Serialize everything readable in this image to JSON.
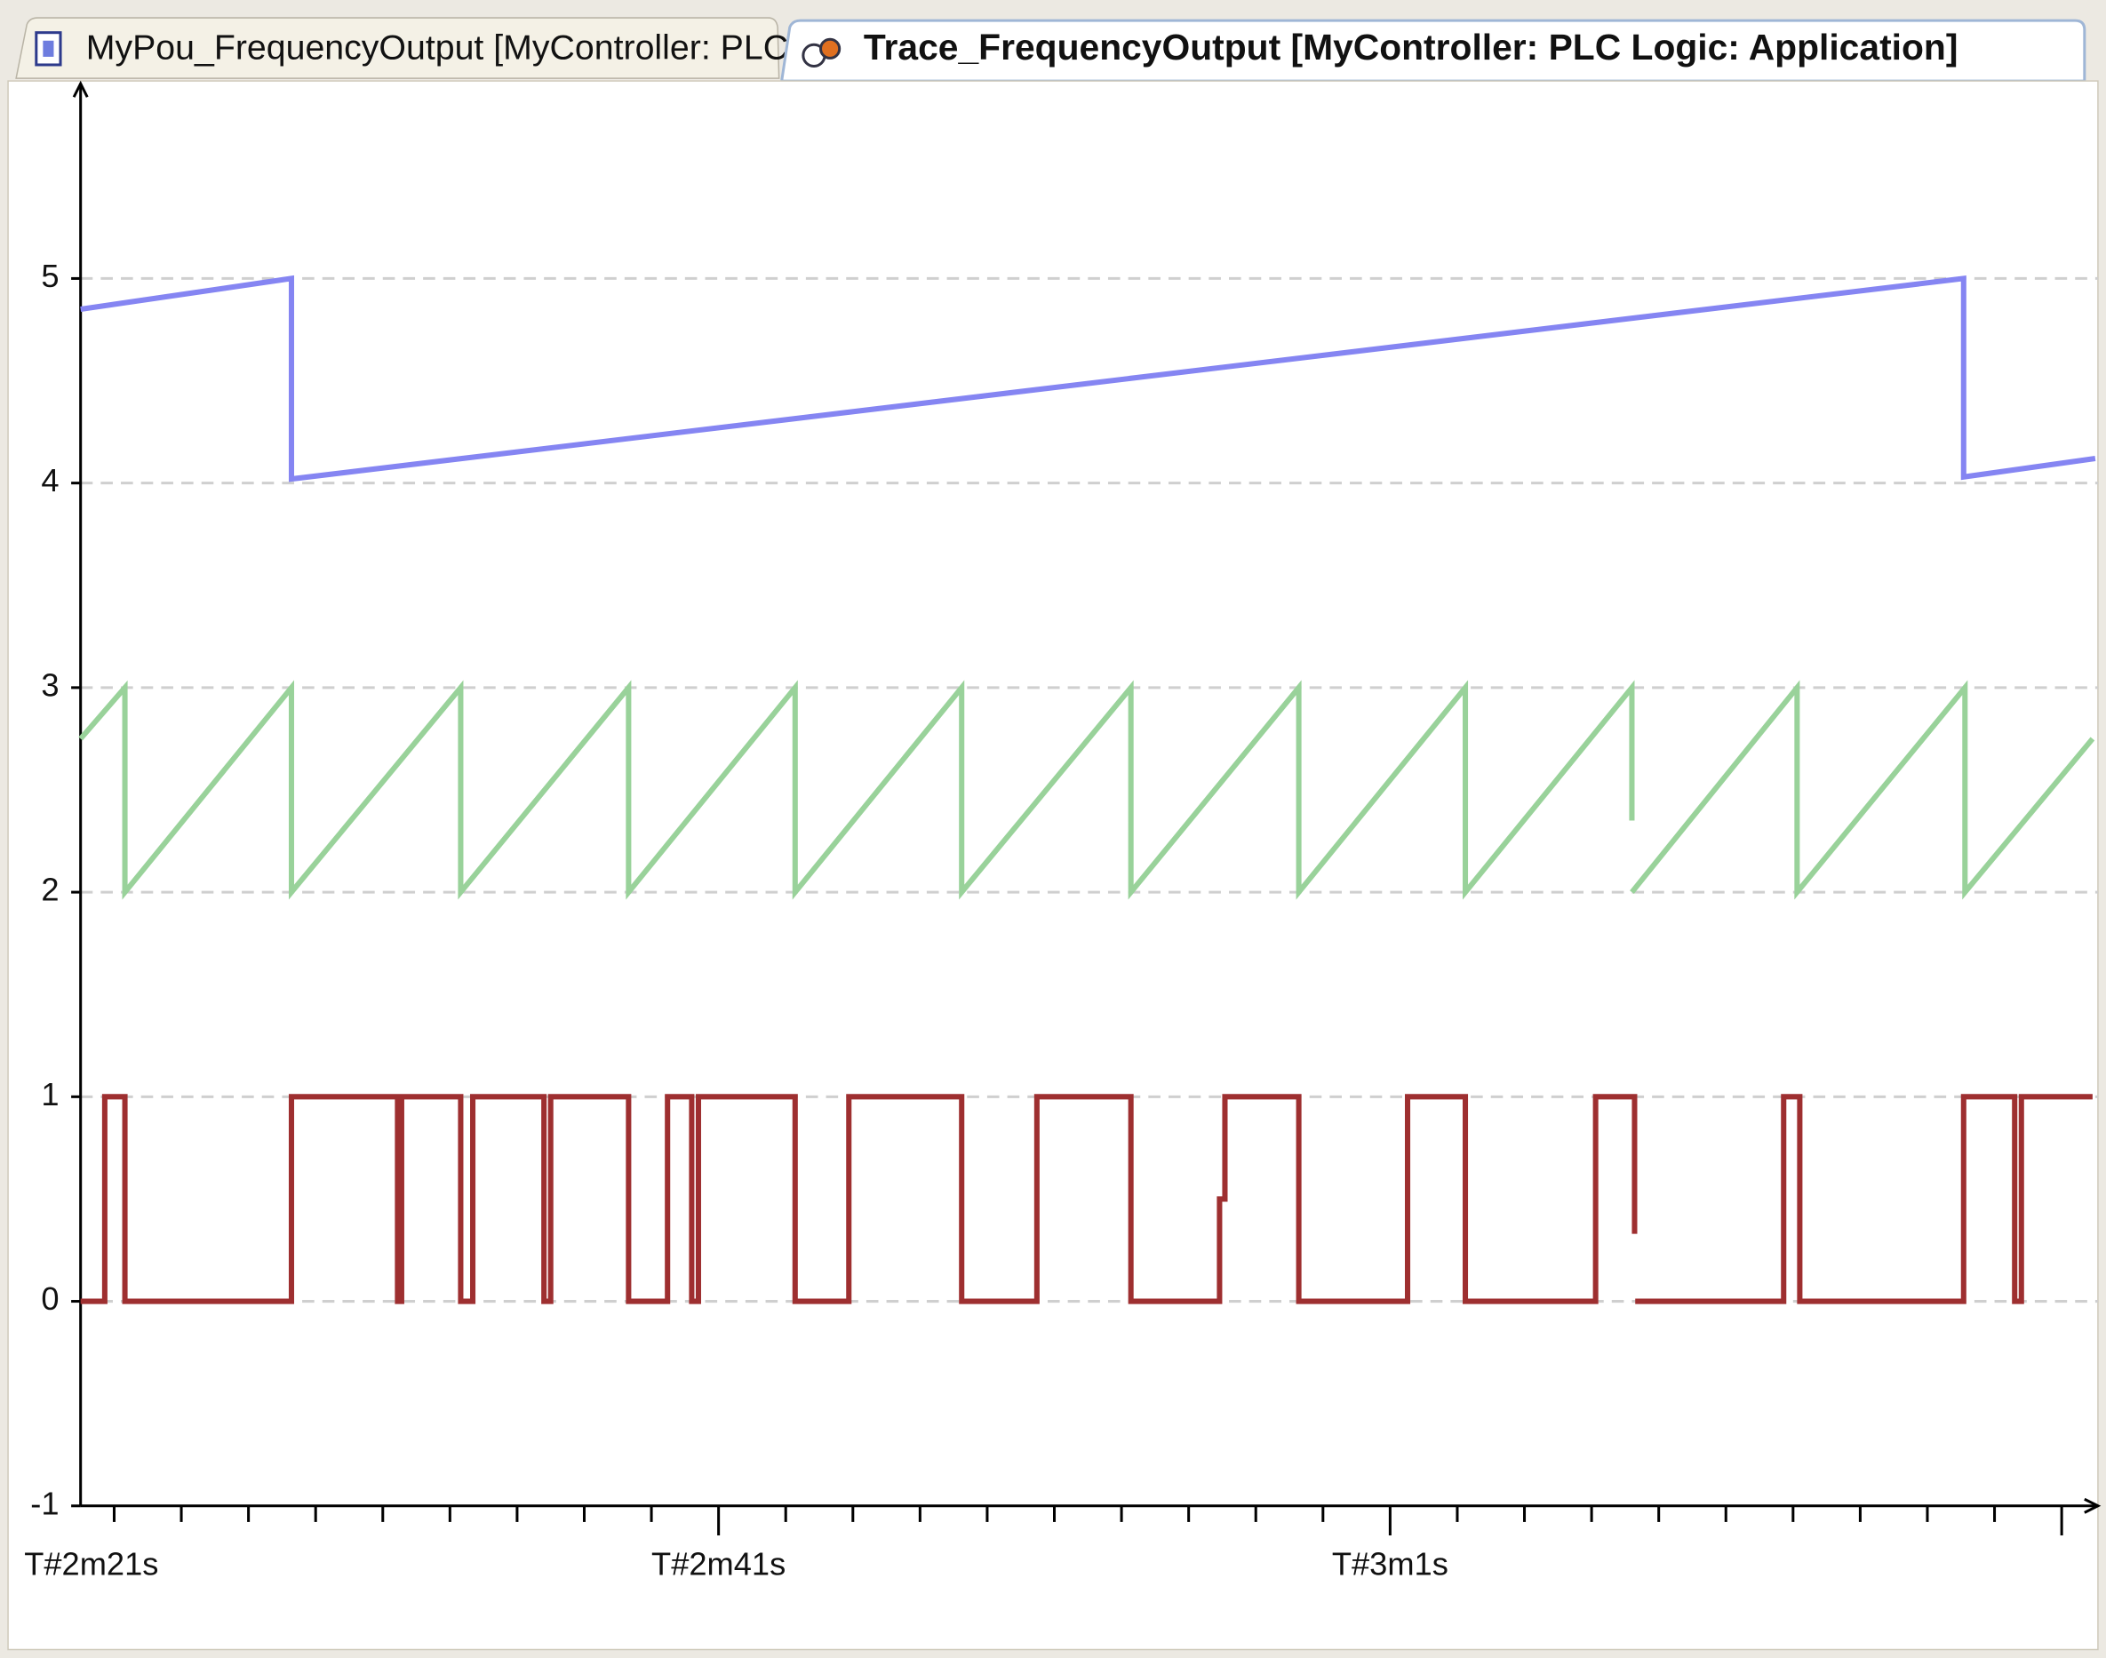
{
  "tabs": [
    "MyPou_FrequencyOutput [MyController: PLC...",
    "Trace_FrequencyOutput [MyController: PLC Logic: Application]"
  ],
  "chart_data": {
    "type": "line",
    "xlim": [
      142,
      202
    ],
    "ylim": [
      -1,
      5.9
    ],
    "yticks": [
      -1,
      0,
      1,
      2,
      3,
      4,
      5
    ],
    "xticks": [
      {
        "value": 141,
        "label": "T#2m21s"
      },
      {
        "value": 161,
        "label": "T#2m41s"
      },
      {
        "value": 181,
        "label": "T#3m1s"
      }
    ],
    "xminor": [
      143,
      145,
      147,
      149,
      151,
      153,
      155,
      157,
      159,
      161,
      163,
      165,
      167,
      169,
      171,
      173,
      175,
      177,
      179,
      181,
      183,
      185,
      187,
      189,
      191,
      193,
      195,
      197,
      199,
      201
    ],
    "xmajor": [
      161,
      181,
      201
    ],
    "grid": true,
    "series": [
      {
        "color": "#8585f2",
        "step": false,
        "x": [
          142,
          148.28,
          148.28,
          198.08,
          198.08,
          202
        ],
        "values": [
          4.85,
          5,
          4.02,
          5,
          4.03,
          4.12
        ]
      },
      {
        "color": "#99d29a",
        "step": false,
        "x": [
          142,
          143.32,
          143.32,
          148.28,
          148.28,
          153.32,
          153.32,
          158.32,
          158.32,
          163.28,
          163.28,
          168.24,
          168.24,
          173.28,
          173.28,
          178.28,
          178.28,
          183.24,
          183.24,
          188.2,
          188.2,
          188.2,
          188.2,
          193.12,
          193.12,
          198.12,
          198.12,
          201.92
        ],
        "values": [
          2.75,
          3,
          2,
          3,
          2,
          3,
          2,
          3,
          2,
          3,
          2,
          3,
          2,
          3,
          2,
          3,
          2,
          3,
          2,
          3,
          2.35,
          null,
          2,
          3,
          2,
          3,
          2,
          2.75
        ]
      },
      {
        "color": "#9e2f30",
        "step": true,
        "x": [
          142,
          142.72,
          143.32,
          148.28,
          151.44,
          151.56,
          153.32,
          153.68,
          155.8,
          156.0,
          158.32,
          159.48,
          160.2,
          160.4,
          163.28,
          164.88,
          168.24,
          170.48,
          173.28,
          175.92,
          176.08,
          178.28,
          181.52,
          183.24,
          187.12,
          188.28,
          188.3,
          188.3,
          192.72,
          193.2,
          198.08,
          199.6,
          199.8,
          201.92
        ],
        "values": [
          0,
          1,
          0,
          1,
          0,
          1,
          0,
          1,
          0,
          1,
          0,
          1,
          0,
          1,
          0,
          1,
          0,
          1,
          0,
          0.5,
          1,
          0,
          1,
          0,
          1,
          0.33,
          null,
          0,
          1,
          0,
          1,
          0,
          1,
          1
        ]
      }
    ]
  }
}
